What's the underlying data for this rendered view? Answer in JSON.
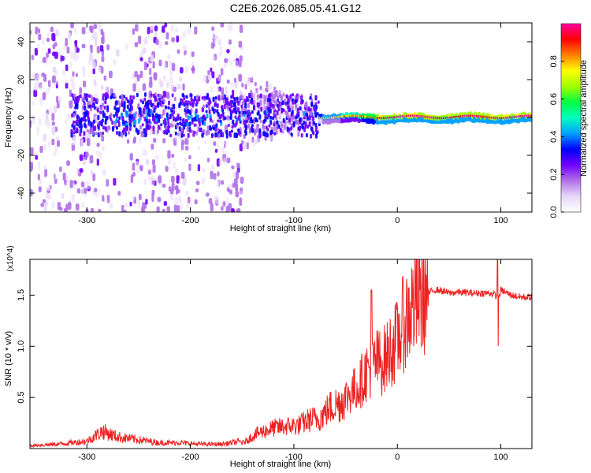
{
  "title": "C2E6.2026.085.05.41.G12",
  "chart_data": [
    {
      "type": "heatmap",
      "xlabel": "Height of straight line (km)",
      "ylabel": "Frequency (Hz)",
      "xlim": [
        -355,
        130
      ],
      "ylim": [
        -50,
        50
      ],
      "xticks": [
        -300,
        -200,
        -100,
        0,
        100
      ],
      "yticks": [
        -40,
        -20,
        0,
        20,
        40
      ],
      "colorbar": {
        "label": "Normalized spectral amplitude",
        "range": [
          0,
          1
        ],
        "ticks": [
          "0.0",
          "0.2",
          "0.4",
          "0.6",
          "0.8"
        ],
        "colors": [
          "#ffffff",
          "#e8d8f8",
          "#b070e8",
          "#7000ff",
          "#0000ff",
          "#00a0ff",
          "#00ffc0",
          "#00ff40",
          "#a0ff00",
          "#ffff00",
          "#ff8000",
          "#ff0000",
          "#ff00a0"
        ]
      },
      "regions": [
        {
          "x": [
            -355,
            -150
          ],
          "f": [
            -50,
            50
          ],
          "level": "scattered 0.1-0.3"
        },
        {
          "x": [
            -310,
            -75
          ],
          "f": [
            -10,
            15
          ],
          "level": "band 0.2-0.4"
        },
        {
          "x": [
            -75,
            130
          ],
          "f": [
            -3,
            4
          ],
          "level": "narrow line 0.4-1.0"
        }
      ]
    },
    {
      "type": "line",
      "xlabel": "Height of straight line (km)",
      "ylabel": "SNR (10 * v/v)",
      "multiplier": "(x10^4)",
      "xlim": [
        -355,
        130
      ],
      "ylim": [
        0,
        1.85
      ],
      "xticks": [
        -300,
        -200,
        -100,
        0,
        100
      ],
      "yticks": [
        0.5,
        1.0,
        1.5
      ],
      "series_color": "#ee2222",
      "x": [
        -355,
        -330,
        -300,
        -285,
        -270,
        -250,
        -230,
        -210,
        -190,
        -170,
        -150,
        -135,
        -120,
        -105,
        -95,
        -85,
        -75,
        -65,
        -55,
        -45,
        -38,
        -30,
        -25,
        -20,
        -15,
        -10,
        -5,
        0,
        5,
        10,
        15,
        20,
        25,
        30,
        35,
        40,
        50,
        60,
        70,
        80,
        90,
        95,
        97,
        100,
        110,
        120,
        130
      ],
      "y": [
        0.02,
        0.03,
        0.05,
        0.12,
        0.08,
        0.06,
        0.04,
        0.04,
        0.03,
        0.03,
        0.05,
        0.15,
        0.2,
        0.22,
        0.23,
        0.28,
        0.3,
        0.4,
        0.45,
        0.55,
        0.6,
        0.75,
        0.8,
        0.85,
        0.85,
        0.9,
        1.0,
        1.05,
        1.2,
        1.3,
        1.4,
        1.45,
        1.5,
        1.52,
        1.55,
        1.55,
        1.52,
        1.53,
        1.52,
        1.52,
        1.52,
        1.5,
        1.45,
        1.55,
        1.5,
        1.48,
        1.48
      ]
    }
  ]
}
